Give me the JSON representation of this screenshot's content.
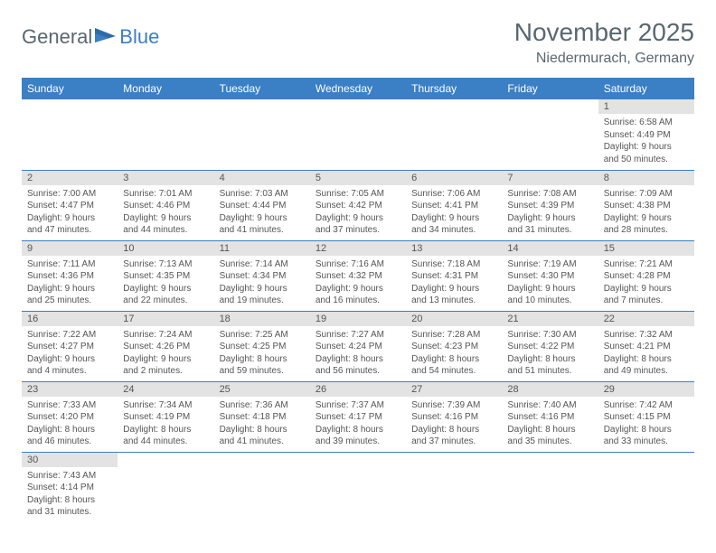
{
  "logo": {
    "text1": "General",
    "text2": "Blue"
  },
  "header": {
    "month_title": "November 2025",
    "location": "Niedermurach, Germany"
  },
  "colors": {
    "header_bg": "#3b7fc4",
    "header_text": "#ffffff",
    "daynum_bg": "#e3e3e3",
    "text": "#555555",
    "row_border": "#3b7fc4",
    "logo_gray": "#5a6770",
    "logo_blue": "#3b7fc4"
  },
  "weekdays": [
    "Sunday",
    "Monday",
    "Tuesday",
    "Wednesday",
    "Thursday",
    "Friday",
    "Saturday"
  ],
  "weeks": [
    [
      null,
      null,
      null,
      null,
      null,
      null,
      {
        "n": "1",
        "sr": "Sunrise: 6:58 AM",
        "ss": "Sunset: 4:49 PM",
        "dl": "Daylight: 9 hours and 50 minutes."
      }
    ],
    [
      {
        "n": "2",
        "sr": "Sunrise: 7:00 AM",
        "ss": "Sunset: 4:47 PM",
        "dl": "Daylight: 9 hours and 47 minutes."
      },
      {
        "n": "3",
        "sr": "Sunrise: 7:01 AM",
        "ss": "Sunset: 4:46 PM",
        "dl": "Daylight: 9 hours and 44 minutes."
      },
      {
        "n": "4",
        "sr": "Sunrise: 7:03 AM",
        "ss": "Sunset: 4:44 PM",
        "dl": "Daylight: 9 hours and 41 minutes."
      },
      {
        "n": "5",
        "sr": "Sunrise: 7:05 AM",
        "ss": "Sunset: 4:42 PM",
        "dl": "Daylight: 9 hours and 37 minutes."
      },
      {
        "n": "6",
        "sr": "Sunrise: 7:06 AM",
        "ss": "Sunset: 4:41 PM",
        "dl": "Daylight: 9 hours and 34 minutes."
      },
      {
        "n": "7",
        "sr": "Sunrise: 7:08 AM",
        "ss": "Sunset: 4:39 PM",
        "dl": "Daylight: 9 hours and 31 minutes."
      },
      {
        "n": "8",
        "sr": "Sunrise: 7:09 AM",
        "ss": "Sunset: 4:38 PM",
        "dl": "Daylight: 9 hours and 28 minutes."
      }
    ],
    [
      {
        "n": "9",
        "sr": "Sunrise: 7:11 AM",
        "ss": "Sunset: 4:36 PM",
        "dl": "Daylight: 9 hours and 25 minutes."
      },
      {
        "n": "10",
        "sr": "Sunrise: 7:13 AM",
        "ss": "Sunset: 4:35 PM",
        "dl": "Daylight: 9 hours and 22 minutes."
      },
      {
        "n": "11",
        "sr": "Sunrise: 7:14 AM",
        "ss": "Sunset: 4:34 PM",
        "dl": "Daylight: 9 hours and 19 minutes."
      },
      {
        "n": "12",
        "sr": "Sunrise: 7:16 AM",
        "ss": "Sunset: 4:32 PM",
        "dl": "Daylight: 9 hours and 16 minutes."
      },
      {
        "n": "13",
        "sr": "Sunrise: 7:18 AM",
        "ss": "Sunset: 4:31 PM",
        "dl": "Daylight: 9 hours and 13 minutes."
      },
      {
        "n": "14",
        "sr": "Sunrise: 7:19 AM",
        "ss": "Sunset: 4:30 PM",
        "dl": "Daylight: 9 hours and 10 minutes."
      },
      {
        "n": "15",
        "sr": "Sunrise: 7:21 AM",
        "ss": "Sunset: 4:28 PM",
        "dl": "Daylight: 9 hours and 7 minutes."
      }
    ],
    [
      {
        "n": "16",
        "sr": "Sunrise: 7:22 AM",
        "ss": "Sunset: 4:27 PM",
        "dl": "Daylight: 9 hours and 4 minutes."
      },
      {
        "n": "17",
        "sr": "Sunrise: 7:24 AM",
        "ss": "Sunset: 4:26 PM",
        "dl": "Daylight: 9 hours and 2 minutes."
      },
      {
        "n": "18",
        "sr": "Sunrise: 7:25 AM",
        "ss": "Sunset: 4:25 PM",
        "dl": "Daylight: 8 hours and 59 minutes."
      },
      {
        "n": "19",
        "sr": "Sunrise: 7:27 AM",
        "ss": "Sunset: 4:24 PM",
        "dl": "Daylight: 8 hours and 56 minutes."
      },
      {
        "n": "20",
        "sr": "Sunrise: 7:28 AM",
        "ss": "Sunset: 4:23 PM",
        "dl": "Daylight: 8 hours and 54 minutes."
      },
      {
        "n": "21",
        "sr": "Sunrise: 7:30 AM",
        "ss": "Sunset: 4:22 PM",
        "dl": "Daylight: 8 hours and 51 minutes."
      },
      {
        "n": "22",
        "sr": "Sunrise: 7:32 AM",
        "ss": "Sunset: 4:21 PM",
        "dl": "Daylight: 8 hours and 49 minutes."
      }
    ],
    [
      {
        "n": "23",
        "sr": "Sunrise: 7:33 AM",
        "ss": "Sunset: 4:20 PM",
        "dl": "Daylight: 8 hours and 46 minutes."
      },
      {
        "n": "24",
        "sr": "Sunrise: 7:34 AM",
        "ss": "Sunset: 4:19 PM",
        "dl": "Daylight: 8 hours and 44 minutes."
      },
      {
        "n": "25",
        "sr": "Sunrise: 7:36 AM",
        "ss": "Sunset: 4:18 PM",
        "dl": "Daylight: 8 hours and 41 minutes."
      },
      {
        "n": "26",
        "sr": "Sunrise: 7:37 AM",
        "ss": "Sunset: 4:17 PM",
        "dl": "Daylight: 8 hours and 39 minutes."
      },
      {
        "n": "27",
        "sr": "Sunrise: 7:39 AM",
        "ss": "Sunset: 4:16 PM",
        "dl": "Daylight: 8 hours and 37 minutes."
      },
      {
        "n": "28",
        "sr": "Sunrise: 7:40 AM",
        "ss": "Sunset: 4:16 PM",
        "dl": "Daylight: 8 hours and 35 minutes."
      },
      {
        "n": "29",
        "sr": "Sunrise: 7:42 AM",
        "ss": "Sunset: 4:15 PM",
        "dl": "Daylight: 8 hours and 33 minutes."
      }
    ],
    [
      {
        "n": "30",
        "sr": "Sunrise: 7:43 AM",
        "ss": "Sunset: 4:14 PM",
        "dl": "Daylight: 8 hours and 31 minutes."
      },
      null,
      null,
      null,
      null,
      null,
      null
    ]
  ]
}
